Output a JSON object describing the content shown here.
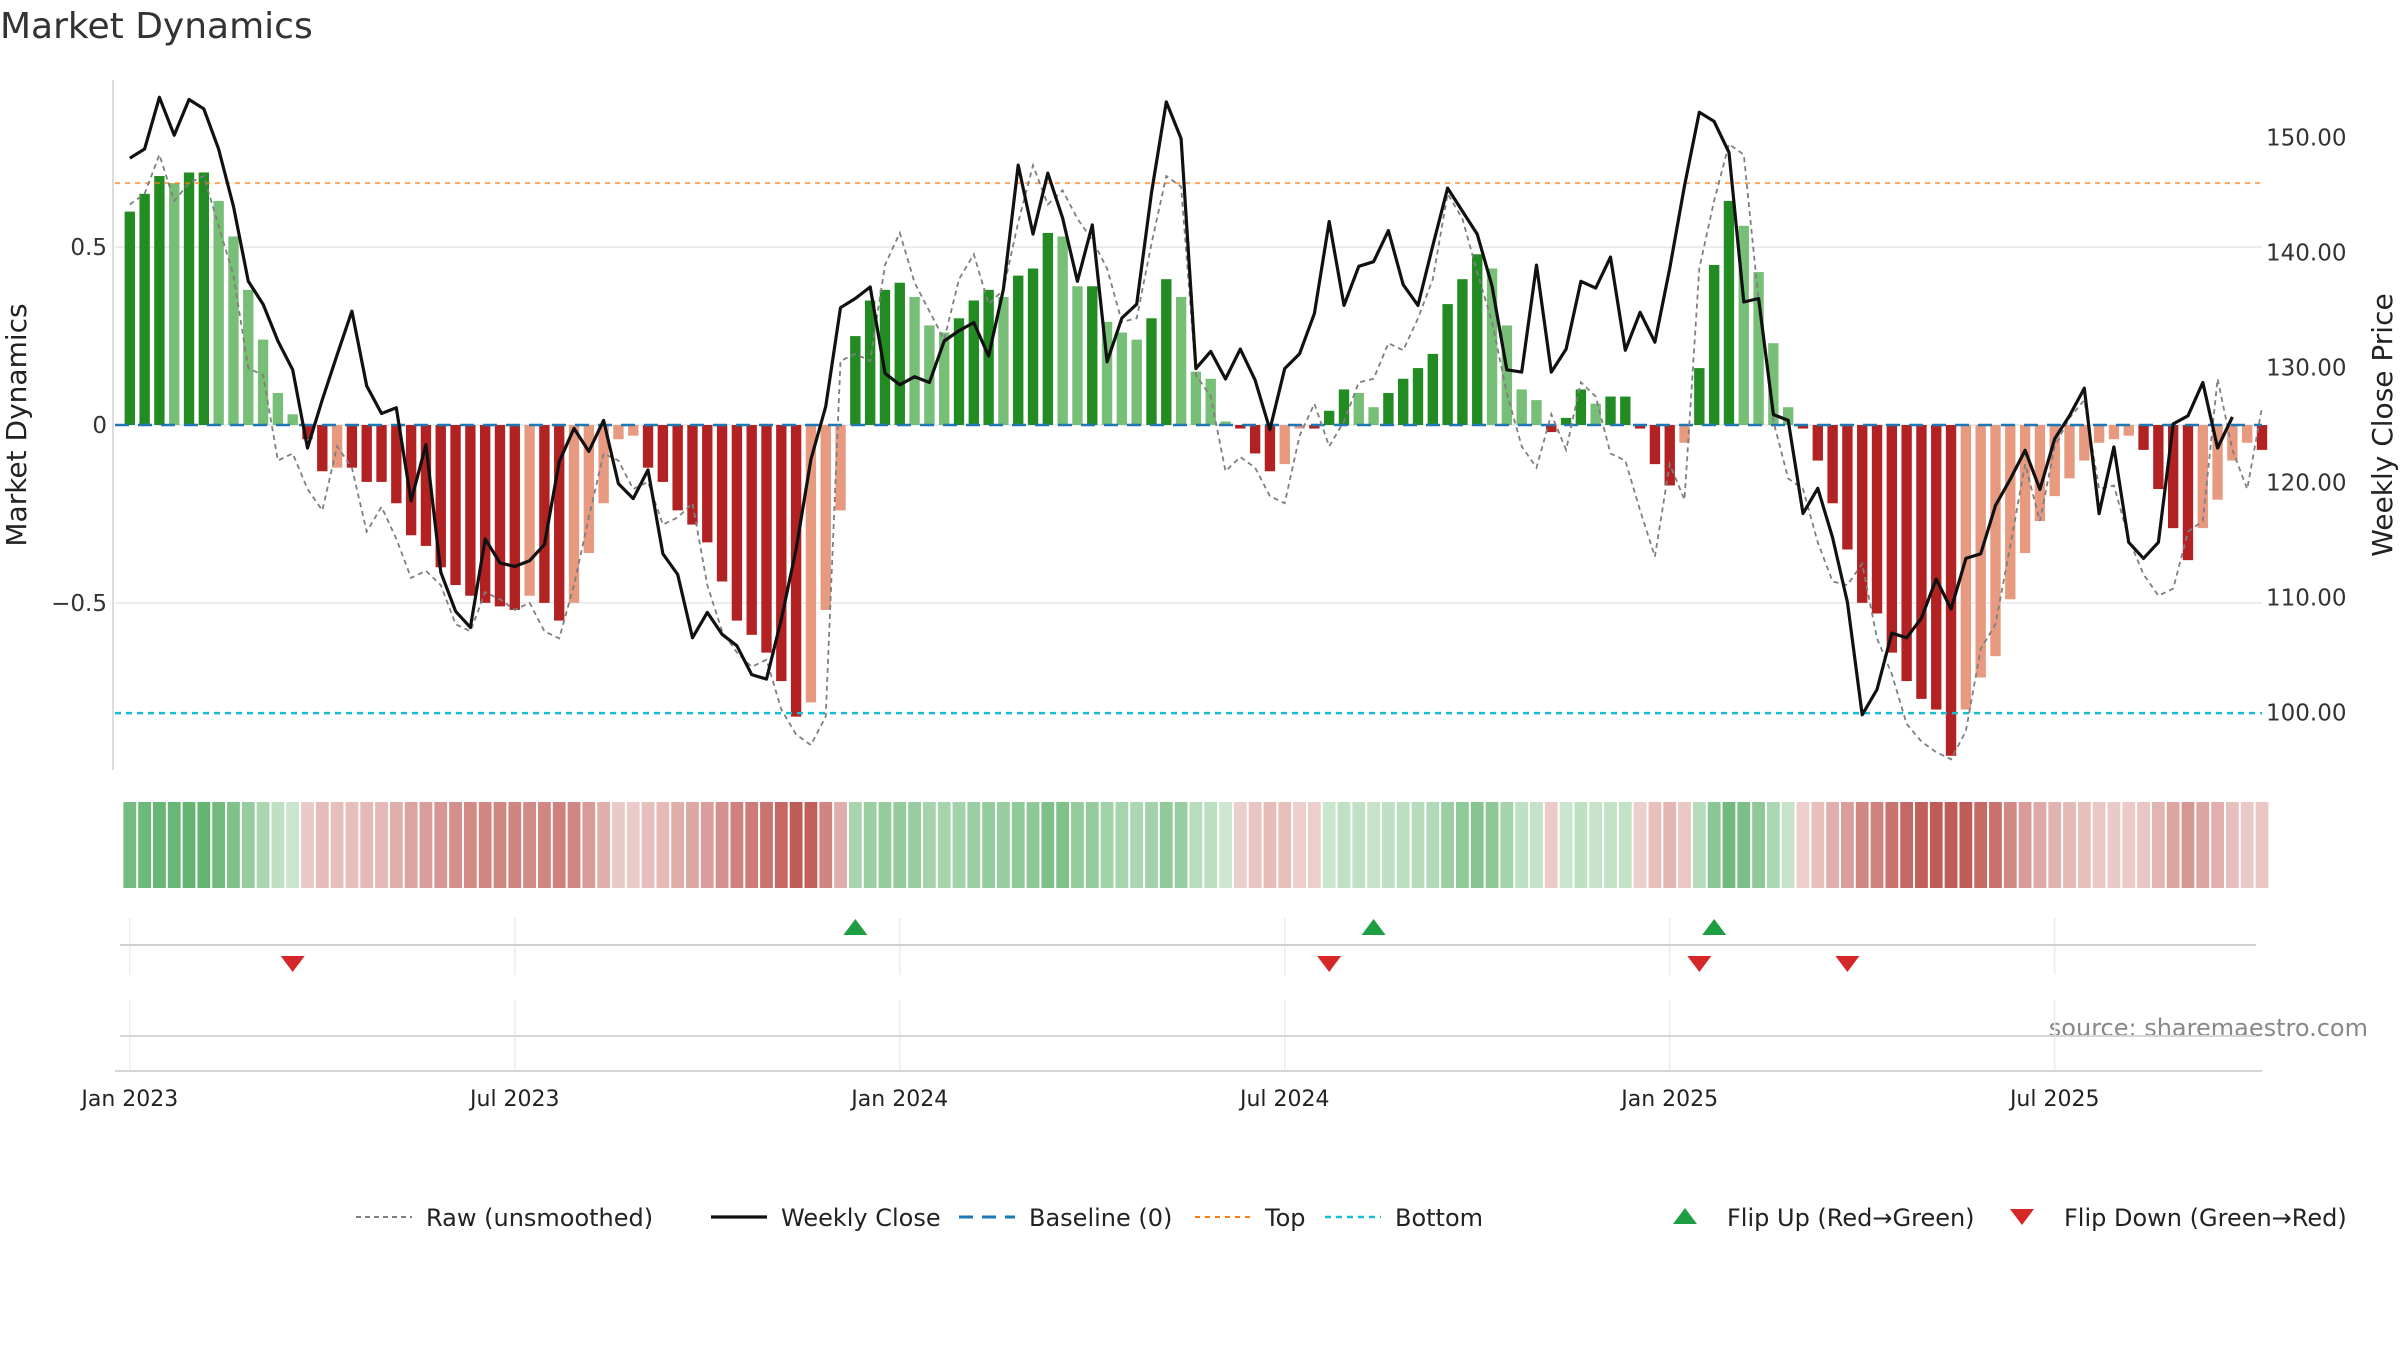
{
  "page": {
    "title": "Market Dynamics"
  },
  "colors": {
    "strong_green": "#228B22",
    "light_green": "#77BE77",
    "strong_red": "#B22222",
    "light_red": "#E79A7F",
    "raw": "#7f7f7f",
    "close": "#111111",
    "baseline": "#1f77b4",
    "top": "#ff7f0e",
    "bottom": "#17becf",
    "flip_up": "#1e9e43",
    "flip_down": "#d62728"
  },
  "chart_data": {
    "type": "bar",
    "title": "Market Dynamics",
    "ylabel_left": "Market Dynamics",
    "ylabel_right": "Weekly Close Price",
    "y_left": {
      "range": [
        -0.97,
        0.97
      ],
      "ticks": [
        0.5,
        0,
        -0.5
      ],
      "tick_labels": [
        "0.5",
        "0",
        "−0.5"
      ]
    },
    "y_right": {
      "range": [
        95.0,
        155.0
      ],
      "ticks": [
        100,
        110,
        120,
        130,
        140,
        150
      ],
      "tick_labels": [
        "100.00",
        "110.00",
        "120.00",
        "130.00",
        "140.00",
        "150.00"
      ]
    },
    "x_ticks": [
      {
        "week": 1,
        "label": "Jan 2023"
      },
      {
        "week": 27,
        "label": "Jul 2023"
      },
      {
        "week": 53,
        "label": "Jan 2024"
      },
      {
        "week": 79,
        "label": "Jul 2024"
      },
      {
        "week": 105,
        "label": "Jan 2025"
      },
      {
        "week": 131,
        "label": "Jul 2025"
      }
    ],
    "x_range": [
      0,
      145
    ],
    "dynamics": [
      0.6,
      0.65,
      0.7,
      0.68,
      0.71,
      0.71,
      0.63,
      0.53,
      0.38,
      0.24,
      0.09,
      0.03,
      -0.04,
      -0.13,
      -0.12,
      -0.12,
      -0.16,
      -0.16,
      -0.22,
      -0.31,
      -0.34,
      -0.4,
      -0.45,
      -0.48,
      -0.5,
      -0.51,
      -0.52,
      -0.48,
      -0.5,
      -0.55,
      -0.5,
      -0.36,
      -0.22,
      -0.04,
      -0.03,
      -0.12,
      -0.16,
      -0.24,
      -0.28,
      -0.33,
      -0.44,
      -0.55,
      -0.59,
      -0.64,
      -0.72,
      -0.82,
      -0.78,
      -0.52,
      -0.24,
      0.25,
      0.35,
      0.38,
      0.4,
      0.36,
      0.28,
      0.26,
      0.3,
      0.35,
      0.38,
      0.36,
      0.42,
      0.44,
      0.54,
      0.53,
      0.39,
      0.39,
      0.29,
      0.26,
      0.24,
      0.3,
      0.41,
      0.36,
      0.15,
      0.13,
      0.01,
      -0.01,
      -0.08,
      -0.13,
      -0.11,
      -0.01,
      -0.01,
      0.04,
      0.1,
      0.09,
      0.05,
      0.09,
      0.13,
      0.16,
      0.2,
      0.34,
      0.41,
      0.48,
      0.44,
      0.28,
      0.1,
      0.07,
      -0.02,
      0.02,
      0.1,
      0.06,
      0.08,
      0.08,
      -0.01,
      -0.11,
      -0.17,
      -0.05,
      0.16,
      0.45,
      0.63,
      0.56,
      0.43,
      0.23,
      0.05,
      -0.01,
      -0.1,
      -0.22,
      -0.35,
      -0.5,
      -0.53,
      -0.64,
      -0.72,
      -0.77,
      -0.8,
      -0.93,
      -0.8,
      -0.71,
      -0.65,
      -0.49,
      -0.36,
      -0.27,
      -0.2,
      -0.15,
      -0.1,
      -0.05,
      -0.04,
      -0.03,
      -0.07,
      -0.18,
      -0.29,
      -0.38,
      -0.29,
      -0.21,
      -0.1,
      -0.05,
      -0.07
    ],
    "raw_unsmoothed": [
      0.62,
      0.65,
      0.76,
      0.63,
      0.68,
      0.7,
      0.56,
      0.42,
      0.16,
      0.14,
      -0.1,
      -0.08,
      -0.18,
      -0.24,
      -0.06,
      -0.12,
      -0.3,
      -0.23,
      -0.32,
      -0.43,
      -0.41,
      -0.45,
      -0.56,
      -0.58,
      -0.47,
      -0.49,
      -0.52,
      -0.5,
      -0.58,
      -0.6,
      -0.45,
      -0.26,
      -0.08,
      -0.1,
      -0.18,
      -0.16,
      -0.28,
      -0.26,
      -0.22,
      -0.45,
      -0.58,
      -0.64,
      -0.68,
      -0.66,
      -0.8,
      -0.87,
      -0.9,
      -0.82,
      0.18,
      0.2,
      0.18,
      0.45,
      0.54,
      0.4,
      0.32,
      0.24,
      0.41,
      0.48,
      0.34,
      0.38,
      0.57,
      0.73,
      0.62,
      0.66,
      0.58,
      0.52,
      0.44,
      0.29,
      0.3,
      0.51,
      0.7,
      0.67,
      0.14,
      0.08,
      -0.13,
      -0.09,
      -0.12,
      -0.2,
      -0.22,
      -0.03,
      0.06,
      -0.06,
      0.01,
      0.12,
      0.13,
      0.23,
      0.21,
      0.3,
      0.41,
      0.65,
      0.58,
      0.43,
      0.29,
      0.09,
      -0.06,
      -0.12,
      0.03,
      -0.07,
      0.12,
      0.08,
      -0.08,
      -0.1,
      -0.24,
      -0.37,
      -0.11,
      -0.21,
      0.44,
      0.63,
      0.79,
      0.76,
      0.35,
      0.01,
      -0.15,
      -0.18,
      -0.33,
      -0.44,
      -0.45,
      -0.39,
      -0.6,
      -0.7,
      -0.84,
      -0.89,
      -0.92,
      -0.94,
      -0.86,
      -0.63,
      -0.56,
      -0.34,
      -0.11,
      -0.27,
      -0.06,
      0.02,
      0.07,
      -0.18,
      -0.17,
      -0.32,
      -0.42,
      -0.48,
      -0.46,
      -0.3,
      -0.27,
      0.13,
      -0.07,
      -0.18,
      0.05
    ],
    "weekly_close": [
      148.2,
      149,
      153.5,
      150.2,
      153.3,
      152.5,
      149,
      144,
      137.5,
      135.5,
      132.3,
      129.8,
      123,
      127.2,
      131.1,
      134.9,
      128.4,
      126,
      126.5,
      118.4,
      123.3,
      112.2,
      108.8,
      107.4,
      115.1,
      113,
      112.7,
      113.2,
      114.6,
      121.8,
      124.7,
      122.7,
      125.4,
      119.9,
      118.6,
      121.1,
      113.8,
      112,
      106.5,
      108.7,
      106.8,
      105.8,
      103.3,
      102.9,
      108.1,
      114.2,
      122,
      126.6,
      135.2,
      136,
      137,
      129.5,
      128.5,
      129.2,
      128.7,
      132.3,
      133.2,
      133.9,
      131,
      136.8,
      147.6,
      141.6,
      146.9,
      143,
      137.5,
      142.4,
      130.5,
      134.3,
      135.5,
      145.2,
      153.1,
      149.9,
      129.9,
      131.4,
      129,
      131.6,
      128.9,
      124.6,
      129.9,
      131.2,
      134.7,
      142.7,
      135.4,
      138.8,
      139.2,
      141.9,
      137.2,
      135.4,
      140.6,
      145.6,
      143.6,
      141.6,
      137.1,
      129.8,
      129.6,
      138.9,
      129.6,
      131.6,
      137.5,
      136.9,
      139.6,
      131.5,
      134.8,
      132.2,
      138.6,
      145.8,
      152.2,
      151.4,
      148.7,
      135.7,
      136,
      125.9,
      125.4,
      117.3,
      119.5,
      115.2,
      109.6,
      99.8,
      102,
      106.9,
      106.5,
      108.2,
      111.6,
      109,
      113.4,
      113.8,
      118,
      120.3,
      122.8,
      119.4,
      123.8,
      125.8,
      128.2,
      117.3,
      123.1,
      114.8,
      113.4,
      114.8,
      125.1,
      125.8,
      128.7,
      123,
      125.7
    ],
    "top_level": 0.68,
    "bottom_level": -0.81,
    "baseline_level": 0,
    "flip_up_weeks": [
      50,
      85,
      108
    ],
    "flip_down_weeks": [
      12,
      82,
      107,
      117
    ],
    "legend": {
      "placement": "bottom",
      "items": [
        {
          "key": "raw",
          "label": "Raw (unsmoothed)"
        },
        {
          "key": "close",
          "label": "Weekly Close"
        },
        {
          "key": "baseline",
          "label": "Baseline (0)"
        },
        {
          "key": "top",
          "label": "Top"
        },
        {
          "key": "bottom",
          "label": "Bottom"
        },
        {
          "key": "flip_up",
          "label": "Flip Up (Red→Green)"
        },
        {
          "key": "flip_down",
          "label": "Flip Down (Green→Red)"
        }
      ]
    },
    "annotation": "source: sharemaestro.com"
  }
}
